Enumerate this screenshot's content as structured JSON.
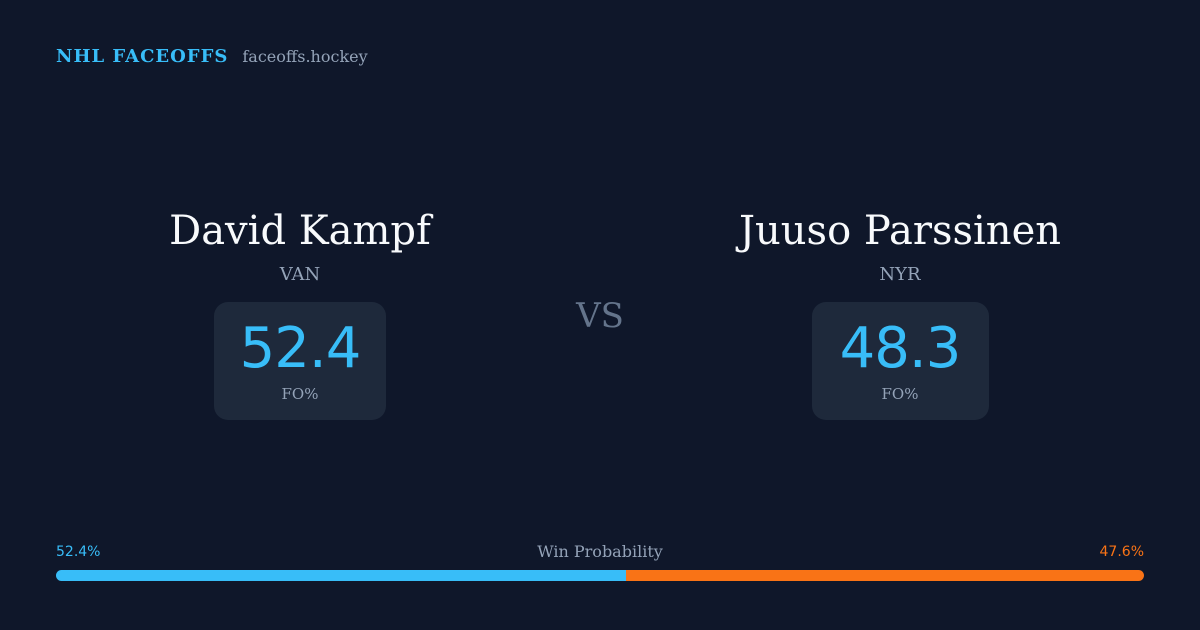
{
  "header": {
    "brand": "NHL FACEOFFS",
    "domain": "faceoffs.hockey"
  },
  "players": {
    "left": {
      "name": "David Kampf",
      "team": "VAN",
      "stat_value": "52.4",
      "stat_label": "FO%"
    },
    "right": {
      "name": "Juuso Parssinen",
      "team": "NYR",
      "stat_value": "48.3",
      "stat_label": "FO%"
    }
  },
  "vs_label": "VS",
  "win_probability": {
    "title": "Win Probability",
    "left_label": "52.4%",
    "right_label": "47.6%",
    "left_value": 52.4,
    "right_value": 47.6
  },
  "colors": {
    "background": "#0f172a",
    "card": "#1e293b",
    "accent_blue": "#38bdf8",
    "accent_orange": "#f97316",
    "muted_text": "#94a3b8"
  }
}
